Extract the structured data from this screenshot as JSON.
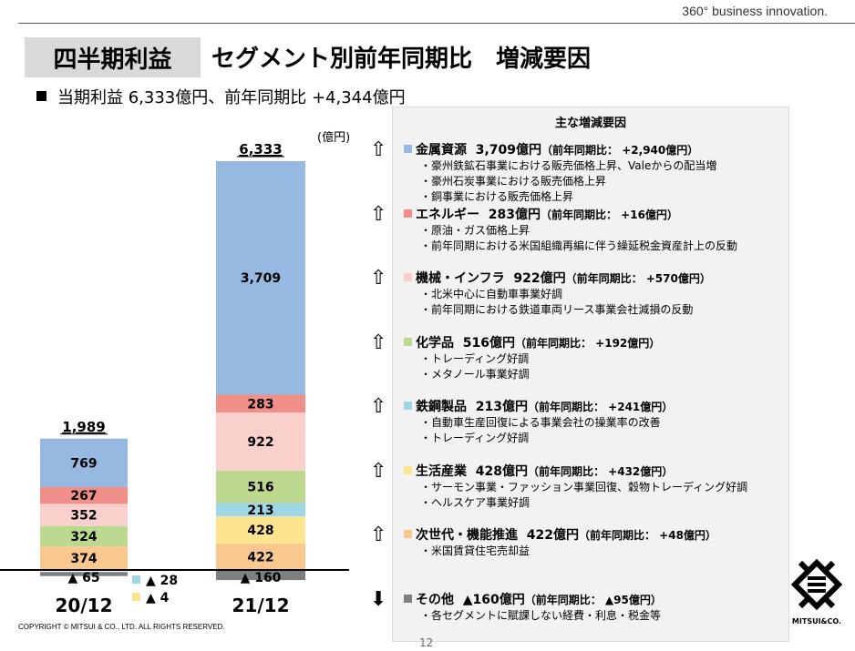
{
  "header": {
    "tagline": "360° business innovation.",
    "title_box": "四半期利益",
    "title": "セグメント別前年同期比　増減要因",
    "summary": "当期利益 6,333億円、前年同期比 +4,344億円"
  },
  "chart_data": {
    "type": "bar",
    "stacked": true,
    "unit": "(億円)",
    "categories": [
      "20/12",
      "21/12"
    ],
    "totals": [
      "1,989",
      "6,333"
    ],
    "series": [
      {
        "key": "nextgen",
        "color": "#f8c88e",
        "values": [
          374,
          422
        ]
      },
      {
        "key": "lifestyle",
        "color": "#fde58f",
        "values": [
          -4,
          428
        ]
      },
      {
        "key": "steel",
        "color": "#9fd7e6",
        "values": [
          -28,
          213
        ]
      },
      {
        "key": "chemicals",
        "color": "#bcd98f",
        "values": [
          324,
          516
        ]
      },
      {
        "key": "machinery",
        "color": "#f9d0cc",
        "values": [
          352,
          922
        ]
      },
      {
        "key": "energy",
        "color": "#ef8f88",
        "values": [
          267,
          283
        ]
      },
      {
        "key": "metals",
        "color": "#95b9e1",
        "values": [
          769,
          3709
        ]
      },
      {
        "key": "other",
        "color": "#7f7f7f",
        "values": [
          -65,
          -160
        ]
      }
    ],
    "labels": {
      "0": {
        "nextgen": "374",
        "chemicals": "324",
        "machinery": "352",
        "energy": "267",
        "metals": "769",
        "other": "▲ 65"
      },
      "1": {
        "nextgen": "422",
        "lifestyle": "428",
        "steel": "213",
        "chemicals": "516",
        "machinery": "922",
        "energy": "283",
        "metals": "3,709",
        "other": "▲ 160"
      }
    },
    "side_labels": [
      {
        "color": "#9fd7e6",
        "text": "▲ 28"
      },
      {
        "color": "#fde58f",
        "text": "▲ 4"
      }
    ]
  },
  "panel": {
    "title": "主な増減要因",
    "items": [
      {
        "arrow": "⇧",
        "color": "#95b9e1",
        "name": "金属資源",
        "value": "3,709億円",
        "cmp": "（前年同期比： +2,940億円）",
        "bullets": [
          "・豪州鉄鉱石事業における販売価格上昇、Valeからの配当増",
          "・豪州石炭事業における販売価格上昇",
          "・銅事業における販売価格上昇"
        ]
      },
      {
        "arrow": "⇧",
        "color": "#ef8f88",
        "name": "エネルギー",
        "value": "283億円",
        "cmp": "（前年同期比： +16億円）",
        "bullets": [
          "・原油・ガス価格上昇",
          "・前年同期における米国組織再編に伴う繰延税金資産計上の反動"
        ]
      },
      {
        "arrow": "⇧",
        "color": "#f9d0cc",
        "name": "機械・インフラ",
        "value": "922億円",
        "cmp": "（前年同期比： +570億円）",
        "bullets": [
          "・北米中心に自動車事業好調",
          "・前年同期における鉄道車両リース事業会社減損の反動"
        ]
      },
      {
        "arrow": "⇧",
        "color": "#bcd98f",
        "name": "化学品",
        "value": "516億円",
        "cmp": "（前年同期比： +192億円）",
        "bullets": [
          "・トレーディング好調",
          "・メタノール事業好調"
        ]
      },
      {
        "arrow": "⇧",
        "color": "#9fd7e6",
        "name": "鉄鋼製品",
        "value": "213億円",
        "cmp": "（前年同期比： +241億円）",
        "bullets": [
          "・自動車生産回復による事業会社の操業率の改善",
          "・トレーディング好調"
        ]
      },
      {
        "arrow": "⇧",
        "color": "#fde58f",
        "name": "生活産業",
        "value": "428億円",
        "cmp": "（前年同期比： +432億円）",
        "bullets": [
          "・サーモン事業・ファッション事業回復、穀物トレーディング好調",
          "・ヘルスケア事業好調"
        ]
      },
      {
        "arrow": "⇧",
        "color": "#f8c88e",
        "name": "次世代・機能推進",
        "value": "422億円",
        "cmp": "（前年同期比： +48億円）",
        "bullets": [
          "・米国賃貸住宅売却益"
        ]
      },
      {
        "arrow": "⬇",
        "color": "#7f7f7f",
        "name": "その他",
        "value": "▲160億円",
        "cmp": "（前年同期比： ▲95億円）",
        "bullets": [
          "・各セグメントに賦課しない経費・利息・税金等"
        ]
      }
    ]
  },
  "footer": {
    "copyright": "COPYRIGHT © MITSUI & CO., LTD. ALL RIGHTS RESERVED.",
    "page": "12",
    "logo_text": "MITSUI&CO."
  }
}
